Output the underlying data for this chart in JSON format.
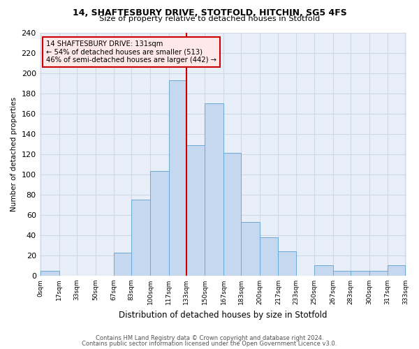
{
  "title1": "14, SHAFTESBURY DRIVE, STOTFOLD, HITCHIN, SG5 4FS",
  "title2": "Size of property relative to detached houses in Stotfold",
  "xlabel": "Distribution of detached houses by size in Stotfold",
  "ylabel": "Number of detached properties",
  "bar_color": "#c5d8f0",
  "bar_edge_color": "#6aaad4",
  "grid_color": "#d0d8e8",
  "bg_color": "#e8eff8",
  "vline_x": 133,
  "vline_color": "#cc0000",
  "annotation_line1": "14 SHAFTESBURY DRIVE: 131sqm",
  "annotation_line2": "← 54% of detached houses are smaller (513)",
  "annotation_line3": "46% of semi-detached houses are larger (442) →",
  "annotation_box_color": "#ffe8e8",
  "annotation_box_edge": "#cc0000",
  "bins": [
    0,
    17,
    33,
    50,
    67,
    83,
    100,
    117,
    133,
    150,
    167,
    183,
    200,
    217,
    233,
    250,
    267,
    283,
    300,
    317,
    333
  ],
  "counts": [
    5,
    0,
    0,
    0,
    23,
    75,
    103,
    193,
    129,
    170,
    121,
    53,
    38,
    24,
    0,
    10,
    5,
    5,
    5,
    10
  ],
  "footnote1": "Contains HM Land Registry data © Crown copyright and database right 2024.",
  "footnote2": "Contains public sector information licensed under the Open Government Licence v3.0.",
  "ylim": [
    0,
    240
  ],
  "yticks": [
    0,
    20,
    40,
    60,
    80,
    100,
    120,
    140,
    160,
    180,
    200,
    220,
    240
  ],
  "tick_labels": [
    "0sqm",
    "17sqm",
    "33sqm",
    "50sqm",
    "67sqm",
    "83sqm",
    "100sqm",
    "117sqm",
    "133sqm",
    "150sqm",
    "167sqm",
    "183sqm",
    "200sqm",
    "217sqm",
    "233sqm",
    "250sqm",
    "267sqm",
    "283sqm",
    "300sqm",
    "317sqm",
    "333sqm"
  ]
}
